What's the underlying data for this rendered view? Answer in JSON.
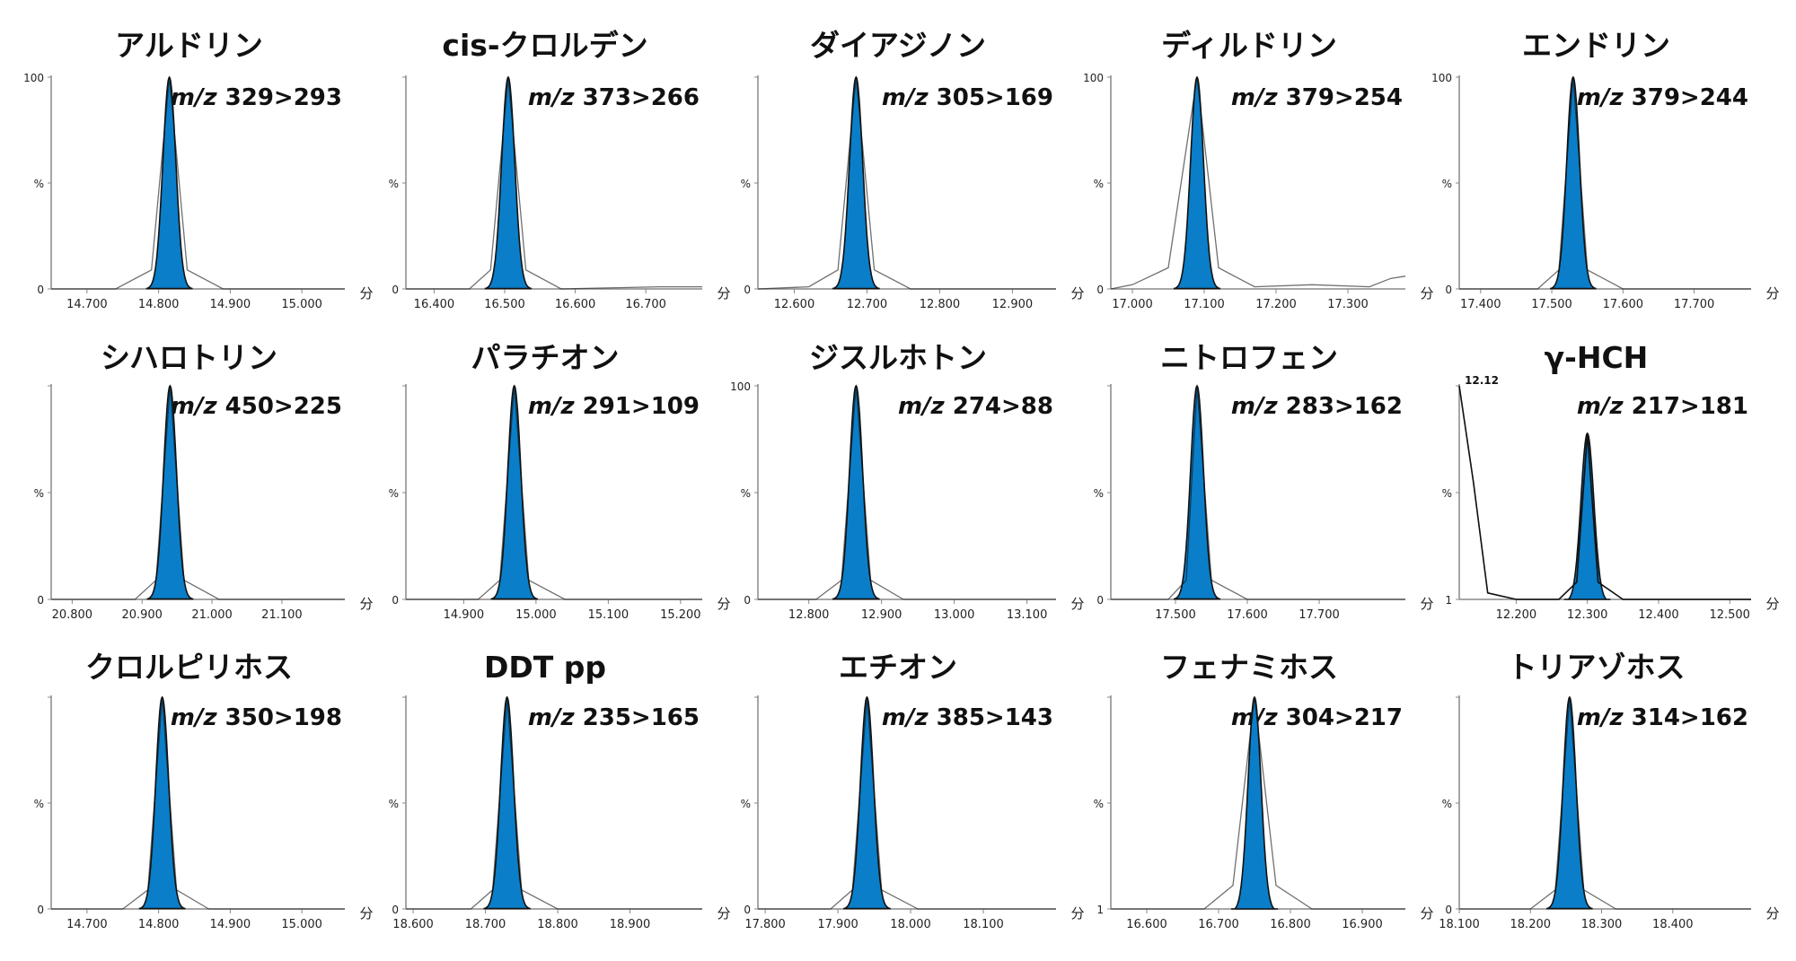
{
  "figure": {
    "time_unit": "分",
    "peak_color": "#0a7ec8",
    "line_color": "#111111"
  },
  "chart_data": [
    {
      "type": "line",
      "title": "アルドリン",
      "transition": "329>293",
      "mz_prefix": "m/z",
      "xlim": [
        14.65,
        15.06
      ],
      "ylim": [
        0,
        100
      ],
      "xticks": [
        "14.700",
        "14.800",
        "14.900",
        "15.000"
      ],
      "yticks": [
        "100",
        "%",
        "0"
      ],
      "peaks": [
        {
          "rt": 14.815,
          "height": 100
        }
      ],
      "x": [
        14.65,
        14.74,
        14.79,
        14.815,
        14.84,
        14.89,
        15.06
      ],
      "y": [
        0,
        0,
        9,
        100,
        9,
        0,
        0
      ]
    },
    {
      "type": "line",
      "title": "cis-クロルデン",
      "transition": "373>266",
      "mz_prefix": "m/z",
      "xlim": [
        16.36,
        16.78
      ],
      "ylim": [
        0,
        100
      ],
      "xticks": [
        "16.400",
        "16.500",
        "16.600",
        "16.700"
      ],
      "yticks": [
        "",
        "%",
        "0"
      ],
      "peaks": [
        {
          "rt": 16.505,
          "height": 100
        }
      ],
      "x": [
        16.36,
        16.45,
        16.48,
        16.505,
        16.53,
        16.58,
        16.72,
        16.78
      ],
      "y": [
        0,
        0,
        9,
        100,
        9,
        0,
        1,
        1
      ]
    },
    {
      "type": "line",
      "title": "ダイアジノン",
      "transition": "305>169",
      "mz_prefix": "m/z",
      "xlim": [
        12.55,
        12.96
      ],
      "ylim": [
        0,
        100
      ],
      "xticks": [
        "12.600",
        "12.700",
        "12.800",
        "12.900"
      ],
      "yticks": [
        "",
        "%",
        "0"
      ],
      "peaks": [
        {
          "rt": 12.685,
          "height": 100
        }
      ],
      "x": [
        12.55,
        12.62,
        12.66,
        12.685,
        12.71,
        12.76,
        12.96
      ],
      "y": [
        0,
        1,
        9,
        100,
        9,
        0,
        0
      ]
    },
    {
      "type": "line",
      "title": "ディルドリン",
      "transition": "379>254",
      "mz_prefix": "m/z",
      "xlim": [
        16.97,
        17.38
      ],
      "ylim": [
        0,
        100
      ],
      "xticks": [
        "17.000",
        "17.100",
        "17.200",
        "17.300"
      ],
      "yticks": [
        "100",
        "%",
        "0"
      ],
      "peaks": [
        {
          "rt": 17.09,
          "height": 100
        }
      ],
      "x": [
        16.97,
        17.0,
        17.05,
        17.09,
        17.12,
        17.17,
        17.25,
        17.33,
        17.36,
        17.38
      ],
      "y": [
        0,
        2,
        10,
        100,
        10,
        1,
        2,
        1,
        5,
        6
      ]
    },
    {
      "type": "line",
      "title": "エンドリン",
      "transition": "379>244",
      "mz_prefix": "m/z",
      "xlim": [
        17.37,
        17.78
      ],
      "ylim": [
        0,
        100
      ],
      "xticks": [
        "17.400",
        "17.500",
        "17.600",
        "17.700"
      ],
      "yticks": [
        "100",
        "%",
        "0"
      ],
      "peaks": [
        {
          "rt": 17.53,
          "height": 100
        }
      ],
      "x": [
        17.37,
        17.48,
        17.51,
        17.53,
        17.55,
        17.6,
        17.78
      ],
      "y": [
        0,
        0,
        9,
        100,
        9,
        0,
        0
      ]
    },
    {
      "type": "line",
      "title": "シハロトリン",
      "transition": "450>225",
      "mz_prefix": "m/z",
      "xlim": [
        20.77,
        21.19
      ],
      "ylim": [
        0,
        100
      ],
      "xticks": [
        "20.800",
        "20.900",
        "21.000",
        "21.100"
      ],
      "yticks": [
        "",
        "%",
        "0"
      ],
      "peaks": [
        {
          "rt": 20.94,
          "height": 100
        }
      ],
      "x": [
        20.77,
        20.89,
        20.92,
        20.94,
        20.96,
        21.01,
        21.19
      ],
      "y": [
        0,
        0,
        9,
        100,
        9,
        0,
        0
      ]
    },
    {
      "type": "line",
      "title": "パラチオン",
      "transition": "291>109",
      "mz_prefix": "m/z",
      "xlim": [
        14.82,
        15.23
      ],
      "ylim": [
        0,
        100
      ],
      "xticks": [
        "14.900",
        "15.000",
        "15.100",
        "15.200"
      ],
      "yticks": [
        "",
        "%",
        "0"
      ],
      "peaks": [
        {
          "rt": 14.97,
          "height": 100
        }
      ],
      "x": [
        14.82,
        14.92,
        14.95,
        14.97,
        14.99,
        15.04,
        15.23
      ],
      "y": [
        0,
        0,
        9,
        100,
        9,
        0,
        0
      ]
    },
    {
      "type": "line",
      "title": "ジスルホトン",
      "transition": "274>88",
      "mz_prefix": "m/z",
      "xlim": [
        12.73,
        13.14
      ],
      "ylim": [
        0,
        100
      ],
      "xticks": [
        "12.800",
        "12.900",
        "13.000",
        "13.100"
      ],
      "yticks": [
        "100",
        "%",
        "0"
      ],
      "peaks": [
        {
          "rt": 12.865,
          "height": 100
        }
      ],
      "x": [
        12.73,
        12.81,
        12.845,
        12.865,
        12.885,
        12.93,
        13.14
      ],
      "y": [
        0,
        0,
        9,
        100,
        9,
        0,
        0
      ]
    },
    {
      "type": "line",
      "title": "ニトロフェン",
      "transition": "283>162",
      "mz_prefix": "m/z",
      "xlim": [
        17.41,
        17.82
      ],
      "ylim": [
        0,
        100
      ],
      "xticks": [
        "17.500",
        "17.600",
        "17.700"
      ],
      "yticks": [
        "",
        "%",
        "0"
      ],
      "peaks": [
        {
          "rt": 17.53,
          "height": 100
        }
      ],
      "x": [
        17.41,
        17.49,
        17.515,
        17.53,
        17.55,
        17.6,
        17.82
      ],
      "y": [
        0,
        0,
        9,
        100,
        9,
        0,
        0
      ]
    },
    {
      "type": "line",
      "title": "γ-HCH",
      "transition": "217>181",
      "mz_prefix": "m/z",
      "xlim": [
        12.12,
        12.53
      ],
      "ylim": [
        1,
        100
      ],
      "xticks": [
        "12.200",
        "12.300",
        "12.400",
        "12.500"
      ],
      "yticks": [
        "",
        "%",
        "1"
      ],
      "annotation": "12.12",
      "peaks": [
        {
          "rt": 12.3,
          "height": 78
        }
      ],
      "x": [
        12.12,
        12.14,
        12.16,
        12.2,
        12.26,
        12.285,
        12.3,
        12.315,
        12.35,
        12.53
      ],
      "y": [
        100,
        55,
        4,
        1,
        1,
        9,
        78,
        9,
        1,
        1
      ]
    },
    {
      "type": "line",
      "title": "クロルピリホス",
      "transition": "350>198",
      "mz_prefix": "m/z",
      "xlim": [
        14.65,
        15.06
      ],
      "ylim": [
        0,
        100
      ],
      "xticks": [
        "14.700",
        "14.800",
        "14.900",
        "15.000"
      ],
      "yticks": [
        "",
        "%",
        "0"
      ],
      "peaks": [
        {
          "rt": 14.805,
          "height": 100
        }
      ],
      "x": [
        14.65,
        14.75,
        14.785,
        14.805,
        14.825,
        14.87,
        15.06
      ],
      "y": [
        0,
        0,
        9,
        100,
        9,
        0,
        0
      ]
    },
    {
      "type": "line",
      "title": "DDT pp",
      "transition": "235>165",
      "mz_prefix": "m/z",
      "xlim": [
        18.59,
        19.0
      ],
      "ylim": [
        0,
        100
      ],
      "xticks": [
        "18.600",
        "18.700",
        "18.800",
        "18.900"
      ],
      "yticks": [
        "",
        "%",
        "0"
      ],
      "peaks": [
        {
          "rt": 18.73,
          "height": 100
        }
      ],
      "x": [
        18.59,
        18.68,
        18.71,
        18.73,
        18.75,
        18.8,
        19.0
      ],
      "y": [
        0,
        0,
        9,
        100,
        9,
        0,
        0
      ]
    },
    {
      "type": "line",
      "title": "エチオン",
      "transition": "385>143",
      "mz_prefix": "m/z",
      "xlim": [
        17.79,
        18.2
      ],
      "ylim": [
        0,
        100
      ],
      "xticks": [
        "17.800",
        "17.900",
        "18.000",
        "18.100"
      ],
      "yticks": [
        "",
        "%",
        "0"
      ],
      "peaks": [
        {
          "rt": 17.94,
          "height": 100
        }
      ],
      "x": [
        17.79,
        17.89,
        17.92,
        17.94,
        17.96,
        18.01,
        18.2
      ],
      "y": [
        0,
        0,
        9,
        100,
        9,
        0,
        0
      ]
    },
    {
      "type": "line",
      "title": "フェナミホス",
      "transition": "304>217",
      "mz_prefix": "m/z",
      "xlim": [
        16.55,
        16.96
      ],
      "ylim": [
        1,
        100
      ],
      "xticks": [
        "16.600",
        "16.700",
        "16.800",
        "16.900"
      ],
      "yticks": [
        "",
        "%",
        "1"
      ],
      "peaks": [
        {
          "rt": 16.75,
          "height": 100
        }
      ],
      "x": [
        16.55,
        16.68,
        16.72,
        16.75,
        16.78,
        16.83,
        16.96
      ],
      "y": [
        1,
        1,
        12,
        100,
        12,
        1,
        1
      ]
    },
    {
      "type": "line",
      "title": "トリアゾホス",
      "transition": "314>162",
      "mz_prefix": "m/z",
      "xlim": [
        18.1,
        18.51
      ],
      "ylim": [
        0,
        100
      ],
      "xticks": [
        "18.100",
        "18.200",
        "18.300",
        "18.400"
      ],
      "yticks": [
        "",
        "%",
        "0"
      ],
      "peaks": [
        {
          "rt": 18.255,
          "height": 100
        }
      ],
      "x": [
        18.1,
        18.2,
        18.235,
        18.255,
        18.275,
        18.32,
        18.51
      ],
      "y": [
        0,
        0,
        9,
        100,
        9,
        0,
        0
      ]
    }
  ]
}
